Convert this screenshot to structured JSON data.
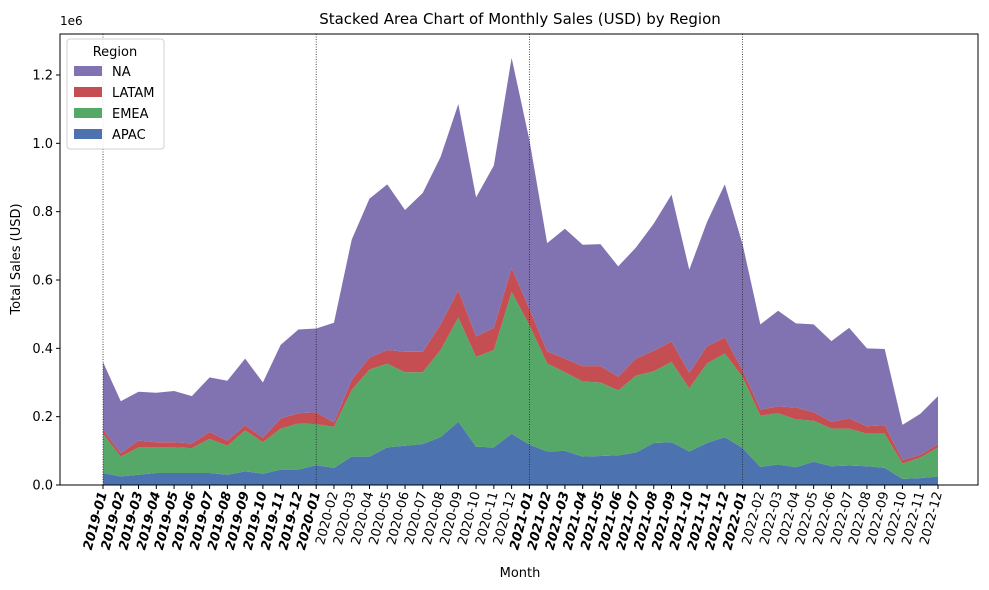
{
  "chart_data": {
    "type": "area",
    "stacked": true,
    "title": "Stacked Area Chart of Monthly Sales (USD) by Region",
    "xlabel": "Month",
    "ylabel": "Total Sales (USD)",
    "y_multiplier_label": "1e6",
    "ylim": [
      0,
      1.32
    ],
    "y_ticks": [
      0.0,
      0.2,
      0.4,
      0.6,
      0.8,
      1.0,
      1.2
    ],
    "y_tick_labels": [
      "0.0",
      "0.2",
      "0.4",
      "0.6",
      "0.8",
      "1.0",
      "1.2"
    ],
    "grid": false,
    "legend": {
      "title": "Region",
      "position": "upper-left",
      "order": [
        "NA",
        "LATAM",
        "EMEA",
        "APAC"
      ]
    },
    "vertical_reference_lines": [
      "2019-01",
      "2020-01",
      "2021-01",
      "2022-01"
    ],
    "bold_tick_year": "2019",
    "categories": [
      "2019-01",
      "2019-02",
      "2019-03",
      "2019-04",
      "2019-05",
      "2019-06",
      "2019-07",
      "2019-08",
      "2019-09",
      "2019-10",
      "2019-11",
      "2019-12",
      "2020-01",
      "2020-02",
      "2020-03",
      "2020-04",
      "2020-05",
      "2020-06",
      "2020-07",
      "2020-08",
      "2020-09",
      "2020-10",
      "2020-11",
      "2020-12",
      "2021-01",
      "2021-02",
      "2021-03",
      "2021-04",
      "2021-05",
      "2021-06",
      "2021-07",
      "2021-08",
      "2021-09",
      "2021-10",
      "2021-11",
      "2021-12",
      "2022-01",
      "2022-02",
      "2022-03",
      "2022-04",
      "2022-05",
      "2022-06",
      "2022-07",
      "2022-08",
      "2022-09",
      "2022-10",
      "2022-11",
      "2022-12"
    ],
    "series": [
      {
        "name": "APAC",
        "color": "#4c72b0",
        "values": [
          0.035,
          0.025,
          0.03,
          0.035,
          0.035,
          0.035,
          0.035,
          0.03,
          0.04,
          0.033,
          0.045,
          0.045,
          0.058,
          0.05,
          0.083,
          0.083,
          0.11,
          0.115,
          0.12,
          0.14,
          0.185,
          0.112,
          0.11,
          0.15,
          0.118,
          0.098,
          0.1,
          0.083,
          0.085,
          0.087,
          0.095,
          0.123,
          0.125,
          0.098,
          0.123,
          0.14,
          0.108,
          0.053,
          0.06,
          0.052,
          0.068,
          0.055,
          0.057,
          0.055,
          0.05,
          0.018,
          0.02,
          0.025
        ]
      },
      {
        "name": "EMEA",
        "color": "#55a868",
        "values": [
          0.115,
          0.058,
          0.08,
          0.075,
          0.075,
          0.073,
          0.1,
          0.085,
          0.12,
          0.092,
          0.12,
          0.135,
          0.12,
          0.12,
          0.195,
          0.255,
          0.245,
          0.215,
          0.21,
          0.255,
          0.305,
          0.263,
          0.285,
          0.415,
          0.35,
          0.258,
          0.23,
          0.22,
          0.215,
          0.19,
          0.225,
          0.21,
          0.235,
          0.185,
          0.233,
          0.245,
          0.208,
          0.15,
          0.15,
          0.14,
          0.12,
          0.11,
          0.108,
          0.095,
          0.1,
          0.045,
          0.06,
          0.085
        ]
      },
      {
        "name": "LATAM",
        "color": "#c44e52",
        "values": [
          0.012,
          0.01,
          0.02,
          0.015,
          0.015,
          0.014,
          0.02,
          0.015,
          0.015,
          0.013,
          0.03,
          0.03,
          0.035,
          0.013,
          0.03,
          0.035,
          0.04,
          0.06,
          0.06,
          0.075,
          0.08,
          0.06,
          0.065,
          0.07,
          0.048,
          0.035,
          0.04,
          0.045,
          0.048,
          0.04,
          0.05,
          0.06,
          0.06,
          0.045,
          0.05,
          0.047,
          0.02,
          0.018,
          0.02,
          0.035,
          0.025,
          0.02,
          0.03,
          0.022,
          0.025,
          0.01,
          0.008,
          0.01
        ]
      },
      {
        "name": "NA",
        "color": "#8172b2",
        "values": [
          0.198,
          0.152,
          0.143,
          0.145,
          0.15,
          0.138,
          0.16,
          0.175,
          0.195,
          0.162,
          0.215,
          0.245,
          0.245,
          0.292,
          0.41,
          0.465,
          0.485,
          0.415,
          0.465,
          0.49,
          0.545,
          0.407,
          0.475,
          0.615,
          0.494,
          0.317,
          0.38,
          0.355,
          0.357,
          0.323,
          0.325,
          0.372,
          0.43,
          0.302,
          0.364,
          0.448,
          0.369,
          0.249,
          0.28,
          0.246,
          0.257,
          0.236,
          0.265,
          0.228,
          0.223,
          0.103,
          0.12,
          0.14
        ]
      }
    ]
  }
}
